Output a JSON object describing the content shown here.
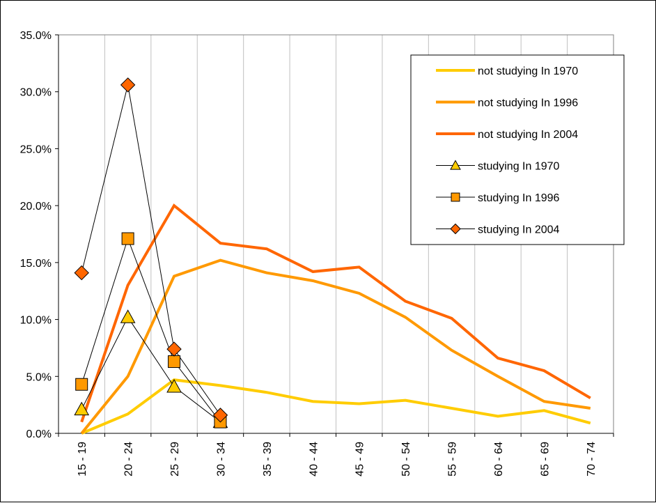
{
  "chart_data": {
    "type": "line",
    "title": "",
    "xlabel": "",
    "ylabel": "",
    "categories": [
      "15 - 19",
      "20 - 24",
      "25 - 29",
      "30 - 34",
      "35 - 39",
      "40 - 44",
      "45 - 49",
      "50 - 54",
      "55 - 59",
      "60 - 64",
      "65 - 69",
      "70 - 74"
    ],
    "y_tick_labels": [
      "0.0%",
      "5.0%",
      "10.0%",
      "15.0%",
      "20.0%",
      "25.0%",
      "30.0%",
      "35.0%"
    ],
    "ylim": [
      0,
      35
    ],
    "y_unit": "%",
    "grid": "vertical",
    "legend_position": "top-right",
    "series": [
      {
        "name": "not studying In 1970",
        "color": "#FFCC00",
        "marker": "none",
        "values": [
          0.0,
          1.7,
          4.7,
          4.2,
          3.6,
          2.8,
          2.6,
          2.9,
          2.2,
          1.5,
          2.0,
          0.9
        ]
      },
      {
        "name": "not studying In 1996",
        "color": "#FF9900",
        "marker": "none",
        "values": [
          0.0,
          5.0,
          13.8,
          15.2,
          14.1,
          13.4,
          12.3,
          10.2,
          7.3,
          5.0,
          2.8,
          2.2
        ]
      },
      {
        "name": "not studying In 2004",
        "color": "#FF6600",
        "marker": "none",
        "values": [
          1.0,
          13.0,
          20.0,
          16.7,
          16.2,
          14.2,
          14.6,
          11.6,
          10.1,
          6.6,
          5.5,
          3.1
        ]
      },
      {
        "name": "studying In 1970",
        "color": "#FFCC00",
        "marker": "triangle",
        "values": [
          2.1,
          10.2,
          4.1,
          1.0,
          null,
          null,
          null,
          null,
          null,
          null,
          null,
          null
        ]
      },
      {
        "name": "studying In 1996",
        "color": "#FF9900",
        "marker": "square",
        "values": [
          4.3,
          17.1,
          6.3,
          1.0,
          null,
          null,
          null,
          null,
          null,
          null,
          null,
          null
        ]
      },
      {
        "name": "studying In 2004",
        "color": "#FF6600",
        "marker": "diamond",
        "values": [
          14.1,
          30.6,
          7.4,
          1.6,
          null,
          null,
          null,
          null,
          null,
          null,
          null,
          null
        ]
      }
    ]
  }
}
